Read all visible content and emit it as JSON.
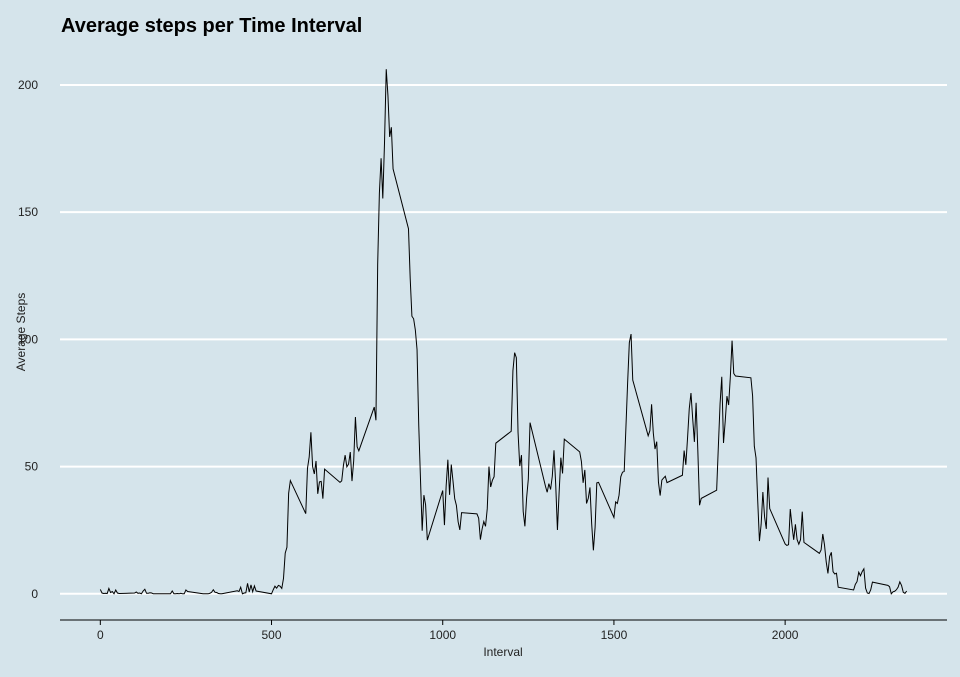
{
  "chart_data": {
    "type": "line",
    "title": "Average steps per Time Interval",
    "x_label": "Interval",
    "y_label": "Average Steps",
    "x": [
      0,
      5,
      10,
      15,
      20,
      25,
      30,
      35,
      40,
      45,
      50,
      55,
      100,
      105,
      110,
      115,
      120,
      125,
      130,
      135,
      140,
      145,
      150,
      155,
      200,
      205,
      210,
      215,
      220,
      225,
      230,
      235,
      240,
      245,
      250,
      255,
      300,
      305,
      310,
      315,
      320,
      325,
      330,
      335,
      340,
      345,
      350,
      355,
      400,
      405,
      410,
      415,
      420,
      425,
      430,
      435,
      440,
      445,
      450,
      455,
      500,
      505,
      510,
      515,
      520,
      525,
      530,
      535,
      540,
      545,
      550,
      555,
      600,
      605,
      610,
      615,
      620,
      625,
      630,
      635,
      640,
      645,
      650,
      655,
      700,
      705,
      710,
      715,
      720,
      725,
      730,
      735,
      740,
      745,
      750,
      755,
      800,
      805,
      810,
      815,
      820,
      825,
      830,
      835,
      840,
      845,
      850,
      855,
      900,
      905,
      910,
      915,
      920,
      925,
      930,
      935,
      940,
      945,
      950,
      955,
      1000,
      1005,
      1010,
      1015,
      1020,
      1025,
      1030,
      1035,
      1040,
      1045,
      1050,
      1055,
      1100,
      1105,
      1110,
      1115,
      1120,
      1125,
      1130,
      1135,
      1140,
      1145,
      1150,
      1155,
      1200,
      1205,
      1210,
      1215,
      1220,
      1225,
      1230,
      1235,
      1240,
      1245,
      1250,
      1255,
      1300,
      1305,
      1310,
      1315,
      1320,
      1325,
      1330,
      1335,
      1340,
      1345,
      1350,
      1355,
      1400,
      1405,
      1410,
      1415,
      1420,
      1425,
      1430,
      1435,
      1440,
      1445,
      1450,
      1455,
      1500,
      1505,
      1510,
      1515,
      1520,
      1525,
      1530,
      1535,
      1540,
      1545,
      1550,
      1555,
      1600,
      1605,
      1610,
      1615,
      1620,
      1625,
      1630,
      1635,
      1640,
      1645,
      1650,
      1655,
      1700,
      1705,
      1710,
      1715,
      1720,
      1725,
      1730,
      1735,
      1740,
      1745,
      1750,
      1755,
      1800,
      1805,
      1810,
      1815,
      1820,
      1825,
      1830,
      1835,
      1840,
      1845,
      1850,
      1855,
      1900,
      1905,
      1910,
      1915,
      1920,
      1925,
      1930,
      1935,
      1940,
      1945,
      1950,
      1955,
      2000,
      2005,
      2010,
      2015,
      2020,
      2025,
      2030,
      2035,
      2040,
      2045,
      2050,
      2055,
      2100,
      2105,
      2110,
      2115,
      2120,
      2125,
      2130,
      2135,
      2140,
      2145,
      2150,
      2155,
      2200,
      2205,
      2210,
      2215,
      2220,
      2225,
      2230,
      2235,
      2240,
      2245,
      2250,
      2255,
      2300,
      2305,
      2310,
      2315,
      2320,
      2325,
      2330,
      2335,
      2340,
      2345,
      2350,
      2355
    ],
    "series": [
      {
        "color": "#000000",
        "values": [
          1.7,
          0.3,
          0.1,
          0.2,
          0.1,
          2.1,
          0.5,
          0.9,
          0,
          1.5,
          0.3,
          0.1,
          0.3,
          0.7,
          0.2,
          0.3,
          0,
          1.1,
          1.8,
          0.2,
          0.2,
          0.4,
          0.3,
          0,
          0,
          0,
          1.1,
          0,
          0,
          0.1,
          0,
          0.2,
          0,
          0,
          1.5,
          0.9,
          0,
          0,
          0,
          0,
          0.2,
          0.6,
          1.6,
          0.6,
          0.5,
          0.1,
          0,
          0,
          1.2,
          0.9,
          2.6,
          0,
          0.3,
          0.4,
          4.1,
          0.7,
          3.5,
          0.8,
          3.1,
          1.1,
          0,
          1.6,
          3.0,
          2.2,
          3.3,
          3.0,
          2.1,
          6.1,
          16.0,
          18.3,
          39.5,
          44.5,
          31.5,
          49.3,
          53.8,
          63.5,
          50.0,
          47.1,
          52.2,
          39.3,
          44.0,
          44.2,
          37.4,
          49.0,
          43.8,
          44.4,
          50.5,
          54.5,
          49.9,
          51.0,
          55.7,
          44.3,
          52.3,
          69.5,
          57.8,
          56.2,
          73.4,
          68.2,
          129.4,
          157.5,
          171.2,
          155.4,
          177.3,
          206.2,
          195.9,
          179.6,
          183.4,
          167.0,
          143.5,
          124.0,
          109.1,
          108.1,
          103.7,
          96.0,
          66.2,
          45.2,
          24.8,
          38.8,
          35.0,
          21.1,
          40.6,
          27.0,
          42.4,
          52.7,
          38.9,
          50.8,
          44.3,
          37.4,
          34.7,
          28.3,
          25.1,
          31.9,
          31.4,
          29.7,
          21.3,
          25.5,
          28.4,
          26.5,
          33.4,
          50.0,
          42.0,
          44.6,
          46.0,
          59.2,
          63.9,
          87.7,
          94.8,
          92.8,
          63.4,
          50.2,
          54.5,
          32.4,
          26.5,
          37.7,
          45.1,
          67.3,
          42.3,
          39.9,
          43.3,
          41.0,
          46.2,
          56.4,
          42.8,
          25.1,
          40.0,
          53.5,
          47.3,
          60.8,
          55.8,
          52.0,
          43.6,
          48.7,
          35.5,
          37.5,
          41.8,
          27.5,
          17.1,
          26.1,
          43.6,
          43.8,
          30.0,
          36.1,
          35.5,
          38.8,
          46.0,
          47.8,
          48.1,
          65.3,
          82.9,
          98.7,
          102.1,
          84.0,
          62.1,
          64.1,
          74.5,
          63.2,
          56.9,
          59.8,
          43.9,
          38.6,
          44.7,
          45.5,
          46.2,
          43.7,
          46.6,
          56.3,
          50.7,
          61.2,
          72.7,
          78.9,
          68.9,
          59.7,
          75.1,
          56.5,
          34.8,
          37.5,
          40.7,
          58.0,
          74.7,
          85.3,
          59.3,
          67.8,
          77.7,
          74.2,
          85.3,
          99.5,
          86.6,
          85.6,
          84.9,
          77.8,
          58.0,
          53.4,
          36.3,
          20.7,
          27.4,
          40.0,
          30.2,
          25.5,
          45.7,
          33.5,
          19.6,
          19.0,
          19.3,
          33.3,
          26.8,
          21.2,
          27.3,
          21.3,
          19.5,
          21.3,
          32.3,
          20.2,
          15.9,
          17.2,
          23.5,
          19.2,
          12.5,
          8.0,
          14.7,
          16.3,
          8.7,
          7.8,
          8.1,
          2.6,
          1.5,
          3.7,
          4.8,
          8.5,
          7.1,
          8.7,
          9.8,
          2.2,
          0.3,
          0.1,
          1.6,
          4.6,
          3.3,
          2.8,
          0,
          0.8,
          1.0,
          1.6,
          2.6,
          4.7,
          3.3,
          0.6,
          0.2,
          1.1
        ]
      }
    ],
    "xlim": [
      -117.75,
      2472.75
    ],
    "ylim": [
      -10.3,
      216.5
    ],
    "xticks": [
      0,
      500,
      1000,
      1500,
      2000
    ],
    "yticks": [
      0,
      50,
      100,
      150,
      200
    ],
    "grid": true
  }
}
